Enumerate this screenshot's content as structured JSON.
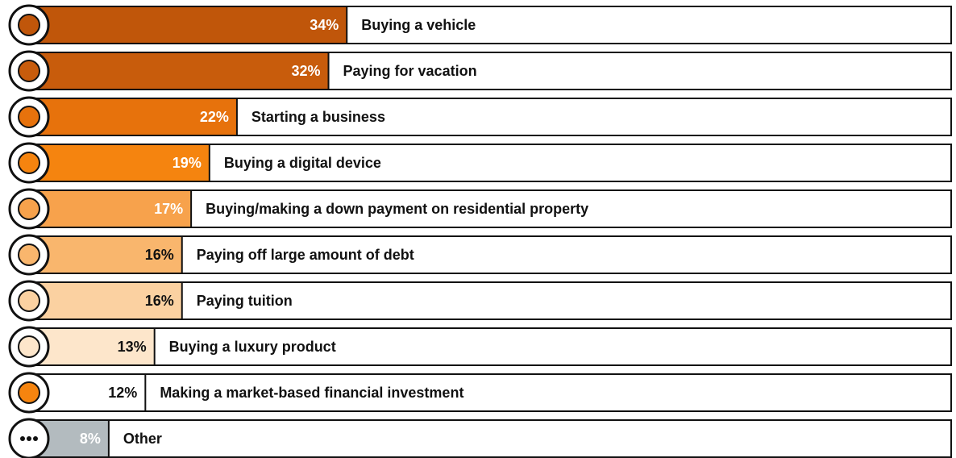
{
  "chart_data": {
    "type": "bar",
    "categories": [
      "Buying a vehicle",
      "Paying for vacation",
      "Starting a business",
      "Buying a digital device",
      "Buying/making a down payment on residential property",
      "Paying off large amount of debt",
      "Paying tuition",
      "Buying a luxury product",
      "Making a market-based financial investment",
      "Other"
    ],
    "values": [
      34,
      32,
      22,
      19,
      17,
      16,
      16,
      13,
      12,
      8
    ],
    "value_labels": [
      "34%",
      "32%",
      "22%",
      "19%",
      "17%",
      "16%",
      "16%",
      "13%",
      "12%",
      "8%"
    ],
    "colors": [
      "#c0560a",
      "#c85c0c",
      "#e7720c",
      "#f5840f",
      "#f7a24c",
      "#f9b66d",
      "#fbd1a1",
      "#fde6cb",
      "#ffffff",
      "#b3bbbf"
    ]
  }
}
